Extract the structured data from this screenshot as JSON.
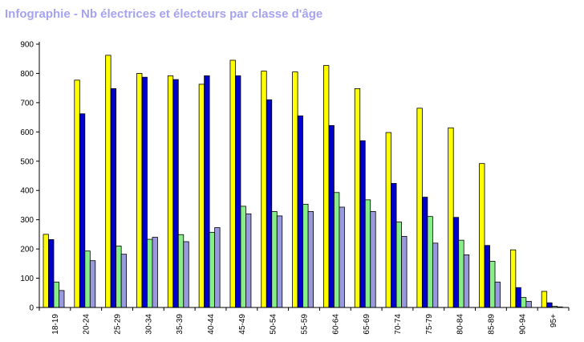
{
  "chart_data": {
    "type": "bar",
    "title": "Infographie - Nb électrices et électeurs par classe d'âge",
    "xlabel": "",
    "ylabel": "",
    "ylim": [
      0,
      900
    ],
    "yticks": [
      0,
      100,
      200,
      300,
      400,
      500,
      600,
      700,
      800,
      900
    ],
    "grid": false,
    "legend": "none",
    "categories": [
      "18-19",
      "20-24",
      "25-29",
      "30-34",
      "35-39",
      "40-44",
      "45-49",
      "50-54",
      "55-59",
      "60-64",
      "65-69",
      "70-74",
      "75-79",
      "80-84",
      "85-89",
      "90-94",
      "95+"
    ],
    "series": [
      {
        "color": "#ffff00",
        "values": [
          250,
          777,
          862,
          800,
          792,
          763,
          845,
          808,
          805,
          827,
          748,
          598,
          681,
          614,
          492,
          197,
          55
        ]
      },
      {
        "color": "#0000cc",
        "values": [
          232,
          662,
          748,
          787,
          779,
          792,
          792,
          710,
          655,
          622,
          570,
          424,
          377,
          308,
          212,
          68,
          16
        ]
      },
      {
        "color": "#88ee88",
        "values": [
          87,
          193,
          210,
          233,
          249,
          257,
          346,
          328,
          353,
          393,
          368,
          292,
          311,
          230,
          158,
          34,
          4
        ]
      },
      {
        "color": "#9999dd",
        "values": [
          58,
          160,
          182,
          240,
          225,
          273,
          320,
          313,
          328,
          343,
          328,
          243,
          220,
          180,
          87,
          21,
          2
        ]
      }
    ]
  }
}
